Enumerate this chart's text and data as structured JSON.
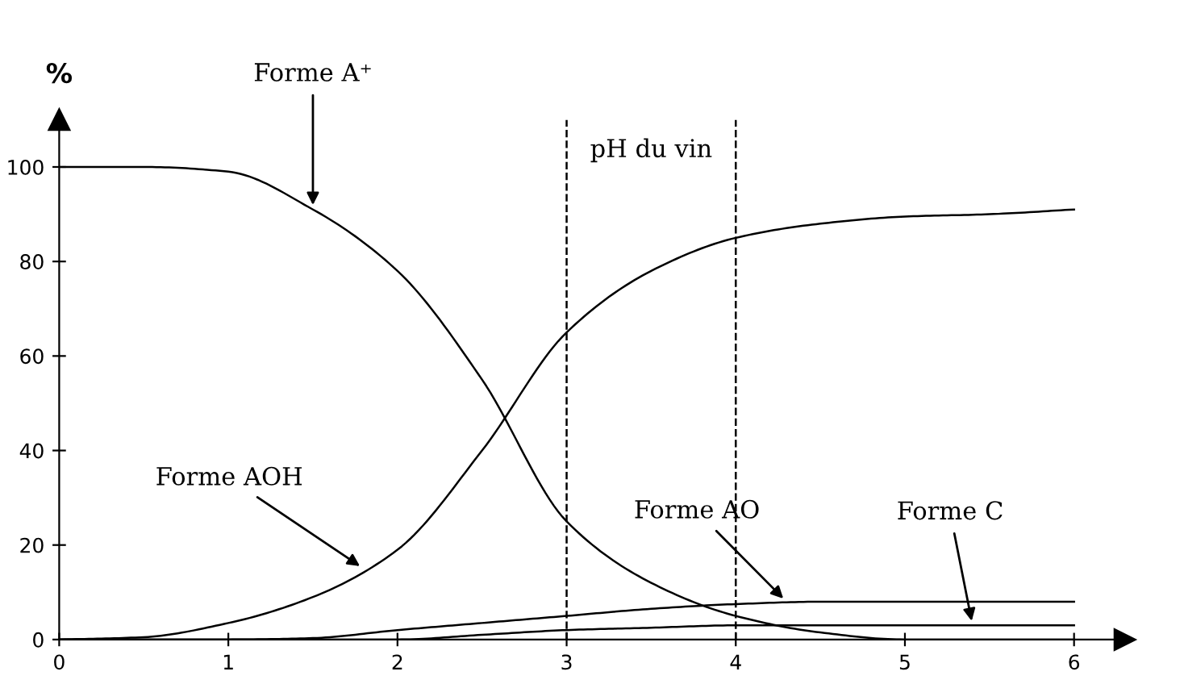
{
  "chart_data": {
    "type": "line",
    "ylabel": "%",
    "x": [
      0,
      0.5,
      1,
      1.5,
      2,
      2.5,
      3,
      3.5,
      4,
      4.5,
      5,
      5.5,
      6
    ],
    "series": [
      {
        "color": "#000000",
        "values": [
          100,
          100,
          99,
          91,
          78,
          55,
          25,
          12,
          5,
          1.5,
          0,
          0,
          0
        ]
      },
      {
        "color": "#000000",
        "values": [
          0,
          0.5,
          3.5,
          9,
          19,
          40,
          65,
          78,
          85,
          88,
          89.5,
          90,
          91
        ]
      },
      {
        "color": "#000000",
        "values": [
          0,
          0,
          0,
          0.3,
          2,
          3.5,
          5,
          6.5,
          7.5,
          8,
          8,
          8,
          8
        ]
      },
      {
        "color": "#000000",
        "values": [
          0,
          0,
          0,
          0,
          0,
          1,
          2,
          2.5,
          3,
          3,
          3,
          3,
          3
        ]
      }
    ],
    "xlim": [
      0,
      6.3
    ],
    "ylim": [
      0,
      110
    ],
    "xticks": [
      0,
      1,
      2,
      3,
      4,
      5,
      6
    ],
    "yticks": [
      0,
      20,
      40,
      60,
      80,
      100
    ],
    "grid": false,
    "legend": false,
    "marker": "none",
    "line_style": "solid",
    "ref_lines": [
      {
        "axis": "x",
        "value": 3,
        "line_style": "dashed",
        "color": "#000000"
      },
      {
        "axis": "x",
        "value": 4,
        "line_style": "dashed",
        "color": "#000000"
      }
    ],
    "annotations": [
      {
        "text": "Forme A⁺",
        "x": 1.5,
        "y": 91
      },
      {
        "text": "Forme AOH",
        "x": 1.8,
        "y": 15
      },
      {
        "text": "Forme AO",
        "x": 4.3,
        "y": 8
      },
      {
        "text": "Forme C",
        "x": 5.4,
        "y": 3
      },
      "pH du vin"
    ]
  }
}
